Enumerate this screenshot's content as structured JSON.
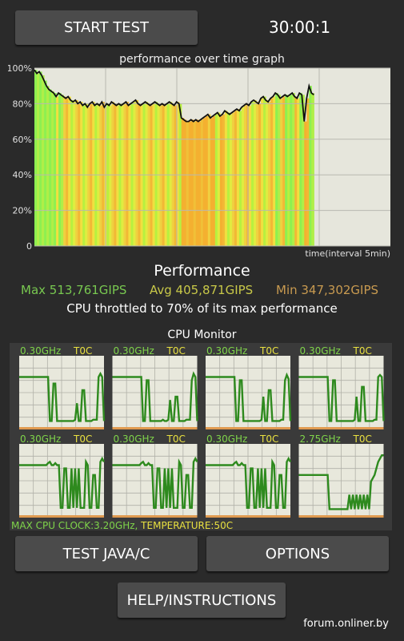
{
  "header": {
    "start_button": "START TEST",
    "timer": "30:00:1"
  },
  "graph": {
    "title": "performance over time graph",
    "y_ticks": [
      "100%",
      "80%",
      "60%",
      "40%",
      "20%",
      "0"
    ],
    "x_label": "time(interval 5min)"
  },
  "chart_data": {
    "type": "line",
    "title": "performance over time graph",
    "xlabel": "time(interval 5min)",
    "ylabel": "",
    "ylim": [
      0,
      100
    ],
    "y_ticks": [
      0,
      20,
      40,
      60,
      80,
      100
    ],
    "grid": true,
    "series": [
      {
        "values": [
          99,
          97,
          98,
          96,
          93,
          90,
          88,
          87,
          86,
          84,
          86,
          85,
          84,
          83,
          84,
          82,
          81,
          82,
          80,
          81,
          79,
          80,
          78,
          80,
          81,
          79,
          80,
          79,
          81,
          78,
          80,
          79,
          81,
          80,
          79,
          80,
          79,
          80,
          81,
          79,
          80,
          81,
          82,
          80,
          79,
          80,
          81,
          80,
          79,
          80,
          81,
          80,
          79,
          80,
          79,
          80,
          81,
          80,
          79,
          81,
          80,
          72,
          71,
          70,
          70,
          71,
          70,
          71,
          70,
          71,
          72,
          73,
          74,
          72,
          73,
          74,
          75,
          73,
          74,
          76,
          75,
          74,
          75,
          76,
          77,
          76,
          78,
          79,
          80,
          79,
          81,
          82,
          81,
          80,
          83,
          84,
          82,
          81,
          83,
          84,
          86,
          85,
          83,
          84,
          85,
          84,
          85,
          86,
          84,
          83,
          86,
          85,
          70,
          83,
          90,
          86,
          85
        ]
      }
    ],
    "heat_colors": [
      "#8ef050",
      "#b8f040",
      "#e0ec40",
      "#f0d040",
      "#f2b835",
      "#f0e040",
      "#e8f03c",
      "#b0ee48"
    ]
  },
  "performance": {
    "heading": "Performance",
    "max": "Max 513,761GIPS",
    "avg": "Avg 405,871GIPS",
    "min": "Min 347,302GIPS",
    "throttle_text": "CPU throttled to 70% of its max performance"
  },
  "cpu_monitor": {
    "title": "CPU Monitor",
    "cores": [
      {
        "freq": "0.30GHz",
        "temp": "T0C",
        "trace": [
          0.75,
          0.75,
          0.75,
          0.75,
          0.75,
          0.75,
          0.75,
          0.75,
          0.75,
          0.75,
          0.75,
          0.75,
          0.75,
          0.75,
          0.75,
          0.75,
          0.75,
          0.08,
          0.08,
          0.65,
          0.65,
          0.08,
          0.08,
          0.08,
          0.08,
          0.08,
          0.08,
          0.08,
          0.08,
          0.08,
          0.08,
          0.1,
          0.35,
          0.08,
          0.08,
          0.55,
          0.55,
          0.08,
          0.08,
          0.08,
          0.08,
          0.1,
          0.1,
          0.1,
          0.75,
          0.8,
          0.75,
          0.08
        ]
      },
      {
        "freq": "0.30GHz",
        "temp": "T0C",
        "trace": [
          0.75,
          0.75,
          0.75,
          0.75,
          0.75,
          0.75,
          0.75,
          0.75,
          0.75,
          0.75,
          0.75,
          0.75,
          0.75,
          0.75,
          0.75,
          0.75,
          0.75,
          0.08,
          0.08,
          0.7,
          0.7,
          0.08,
          0.08,
          0.08,
          0.08,
          0.08,
          0.08,
          0.08,
          0.1,
          0.08,
          0.08,
          0.1,
          0.4,
          0.08,
          0.08,
          0.45,
          0.45,
          0.08,
          0.08,
          0.08,
          0.08,
          0.1,
          0.1,
          0.1,
          0.7,
          0.8,
          0.75,
          0.08
        ]
      },
      {
        "freq": "0.30GHz",
        "temp": "T0C",
        "trace": [
          0.75,
          0.75,
          0.75,
          0.75,
          0.75,
          0.75,
          0.75,
          0.75,
          0.75,
          0.75,
          0.75,
          0.75,
          0.75,
          0.75,
          0.75,
          0.75,
          0.75,
          0.08,
          0.08,
          0.7,
          0.7,
          0.08,
          0.08,
          0.08,
          0.08,
          0.08,
          0.08,
          0.08,
          0.08,
          0.08,
          0.08,
          0.1,
          0.45,
          0.08,
          0.08,
          0.55,
          0.55,
          0.08,
          0.08,
          0.08,
          0.08,
          0.08,
          0.1,
          0.1,
          0.7,
          0.78,
          0.72,
          0.08
        ]
      },
      {
        "freq": "0.30GHz",
        "temp": "T0C",
        "trace": [
          0.75,
          0.75,
          0.75,
          0.75,
          0.75,
          0.75,
          0.75,
          0.75,
          0.75,
          0.75,
          0.75,
          0.75,
          0.75,
          0.75,
          0.75,
          0.75,
          0.75,
          0.08,
          0.08,
          0.7,
          0.7,
          0.08,
          0.08,
          0.08,
          0.08,
          0.08,
          0.08,
          0.08,
          0.08,
          0.08,
          0.08,
          0.1,
          0.45,
          0.08,
          0.08,
          0.6,
          0.6,
          0.08,
          0.08,
          0.08,
          0.08,
          0.08,
          0.1,
          0.1,
          0.75,
          0.78,
          0.75,
          0.08
        ]
      },
      {
        "freq": "0.30GHz",
        "temp": "T0C",
        "trace": [
          0.75,
          0.75,
          0.75,
          0.75,
          0.75,
          0.75,
          0.75,
          0.75,
          0.75,
          0.75,
          0.75,
          0.75,
          0.75,
          0.75,
          0.75,
          0.75,
          0.78,
          0.8,
          0.75,
          0.75,
          0.78,
          0.75,
          0.75,
          0.1,
          0.1,
          0.7,
          0.7,
          0.1,
          0.1,
          0.7,
          0.1,
          0.7,
          0.1,
          0.7,
          0.1,
          0.1,
          0.1,
          0.8,
          0.75,
          0.1,
          0.1,
          0.6,
          0.6,
          0.1,
          0.1,
          0.8,
          0.85,
          0.8
        ]
      },
      {
        "freq": "0.30GHz",
        "temp": "T0C",
        "trace": [
          0.75,
          0.75,
          0.75,
          0.75,
          0.75,
          0.75,
          0.75,
          0.75,
          0.75,
          0.75,
          0.75,
          0.75,
          0.75,
          0.75,
          0.75,
          0.75,
          0.78,
          0.8,
          0.75,
          0.75,
          0.78,
          0.75,
          0.75,
          0.1,
          0.1,
          0.7,
          0.7,
          0.1,
          0.1,
          0.7,
          0.1,
          0.7,
          0.1,
          0.7,
          0.1,
          0.1,
          0.1,
          0.8,
          0.75,
          0.1,
          0.1,
          0.6,
          0.6,
          0.1,
          0.1,
          0.8,
          0.85,
          0.8
        ]
      },
      {
        "freq": "0.30GHz",
        "temp": "T0C",
        "trace": [
          0.75,
          0.75,
          0.75,
          0.75,
          0.75,
          0.75,
          0.75,
          0.75,
          0.75,
          0.75,
          0.75,
          0.75,
          0.75,
          0.75,
          0.75,
          0.75,
          0.78,
          0.8,
          0.75,
          0.75,
          0.78,
          0.75,
          0.75,
          0.1,
          0.1,
          0.7,
          0.7,
          0.1,
          0.1,
          0.7,
          0.1,
          0.7,
          0.1,
          0.7,
          0.1,
          0.1,
          0.1,
          0.8,
          0.75,
          0.1,
          0.1,
          0.6,
          0.6,
          0.1,
          0.1,
          0.8,
          0.85,
          0.8
        ]
      },
      {
        "freq": "2.75GHz",
        "temp": "T0C",
        "trace": [
          0.6,
          0.6,
          0.6,
          0.6,
          0.6,
          0.6,
          0.6,
          0.6,
          0.6,
          0.6,
          0.6,
          0.6,
          0.6,
          0.6,
          0.6,
          0.6,
          0.6,
          0.08,
          0.08,
          0.08,
          0.08,
          0.08,
          0.08,
          0.08,
          0.08,
          0.08,
          0.08,
          0.08,
          0.3,
          0.08,
          0.3,
          0.08,
          0.3,
          0.08,
          0.3,
          0.08,
          0.3,
          0.08,
          0.3,
          0.08,
          0.5,
          0.55,
          0.6,
          0.7,
          0.8,
          0.85,
          0.9,
          0.9
        ]
      }
    ],
    "footer_clock": "MAX CPU CLOCK:3.20GHz,",
    "footer_temp": "TEMPERATURE:50C"
  },
  "colors": {
    "clock_green": "#7fd44a",
    "temp_yellow": "#e8e040",
    "trace_green": "#2e8a1e",
    "max_green": "#78c850",
    "avg_yellow": "#c8c848",
    "min_orange": "#c89a50",
    "core_bg": "#e8e8dc",
    "core_bottom": "#e09a50"
  },
  "buttons": {
    "test_java": "TEST JAVA/C",
    "options": "OPTIONS",
    "help": "HELP/INSTRUCTIONS"
  },
  "watermark": "forum.onliner.by"
}
